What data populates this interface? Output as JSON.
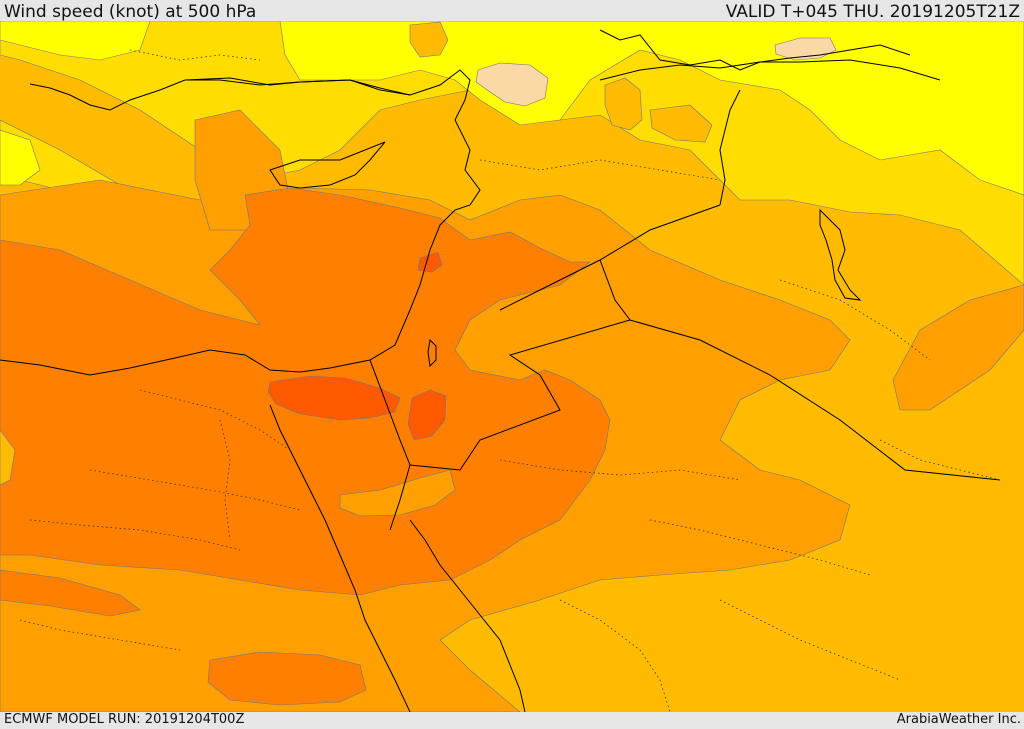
{
  "header": {
    "title": "Wind speed (knot) at 500 hPa",
    "valid": "VALID T+045 THU. 20191205T21Z"
  },
  "footer": {
    "model_run": "ECMWF MODEL RUN: 20191204T00Z",
    "credit": "ArabiaWeather Inc."
  },
  "colors": {
    "frame": "#e6e6e6",
    "band_weakest": "#fbd9a6",
    "band_yellow": "#ffff00",
    "band_gold": "#ffdd00",
    "band_amber": "#ffbb00",
    "band_orange": "#ff9f00",
    "band_dark_orange": "#ff8000",
    "band_strongest": "#ff5a00",
    "coastline": "#000000",
    "border": "#000000"
  }
}
